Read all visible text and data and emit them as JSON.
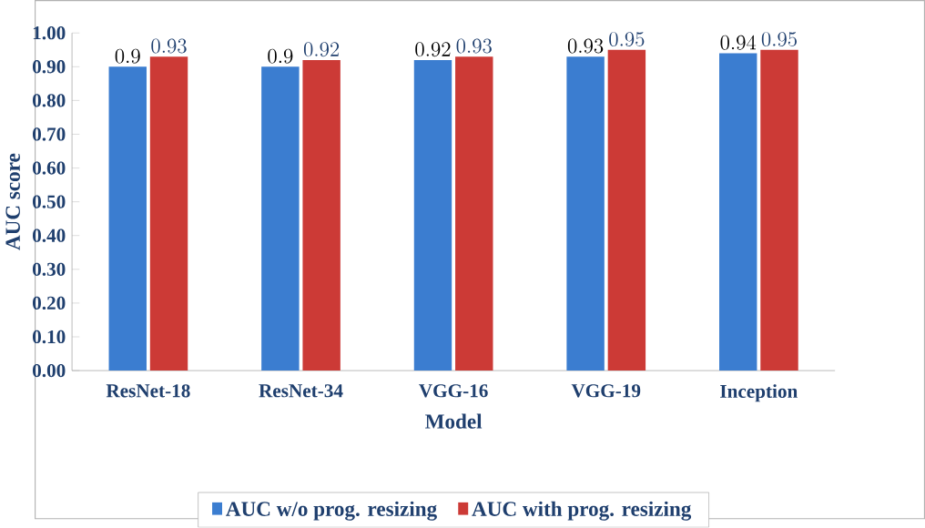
{
  "chart_data": {
    "type": "bar",
    "xlabel": "Model",
    "ylabel": "AUC score",
    "categories": [
      "ResNet-18",
      "ResNet-34",
      "VGG-16",
      "VGG-19",
      "Inception"
    ],
    "series": [
      {
        "name": "AUC w/o prog. resizing",
        "color": "#3b7dd0",
        "values": [
          0.9,
          0.9,
          0.92,
          0.93,
          0.94
        ]
      },
      {
        "name": "AUC with prog. resizing",
        "color": "#cc3a36",
        "values": [
          0.93,
          0.92,
          0.93,
          0.95,
          0.95
        ]
      }
    ],
    "ylim": [
      0,
      1
    ],
    "yticks": [
      {
        "value": 0,
        "label": "0.00"
      },
      {
        "value": 0.1,
        "label": "0.10"
      },
      {
        "value": 0.2,
        "label": "0.20"
      },
      {
        "value": 0.3,
        "label": "0.30"
      },
      {
        "value": 0.4,
        "label": "0.40"
      },
      {
        "value": 0.5,
        "label": "0.50"
      },
      {
        "value": 0.6,
        "label": "0.60"
      },
      {
        "value": 0.7,
        "label": "0.70"
      },
      {
        "value": 0.8,
        "label": "0.80"
      },
      {
        "value": 0.9,
        "label": "0.90"
      },
      {
        "value": 1,
        "label": "1.00"
      }
    ],
    "data_labels": true,
    "legend": "bottom",
    "grid": false
  }
}
